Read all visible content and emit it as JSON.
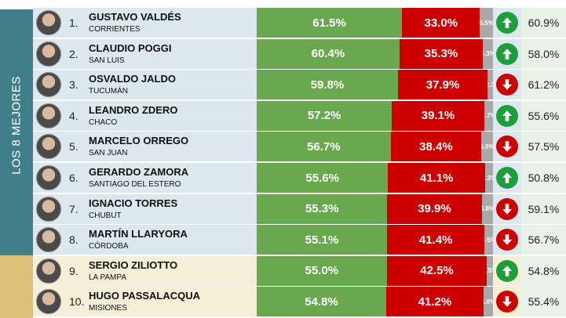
{
  "board": {
    "side_label": "LOS 8 MEJORES",
    "colors": {
      "teal": "#3f7f8a",
      "gold": "#dcc07a",
      "positive": "#6aa84f",
      "negative": "#cc0000",
      "other": "#a9a9a9",
      "up": "#1e9e3a",
      "down": "#cc0000"
    }
  },
  "chart_data": {
    "type": "bar",
    "stacked": true,
    "orientation": "horizontal",
    "xlim": [
      0,
      100
    ],
    "categories": [
      "GUSTAVO VALDÉS",
      "CLAUDIO POGGI",
      "OSVALDO JALDO",
      "LEANDRO ZDERO",
      "MARCELO ORREGO",
      "GERARDO ZAMORA",
      "IGNACIO TORRES",
      "MARTÍN LLARYORA",
      "SERGIO ZILIOTTO",
      "HUGO PASSALACQUA"
    ],
    "series": [
      {
        "values": [
          61.5,
          60.4,
          59.8,
          57.2,
          56.7,
          55.6,
          55.3,
          55.1,
          55.0,
          54.8
        ],
        "color": "#6aa84f"
      },
      {
        "values": [
          33.0,
          35.3,
          37.9,
          39.1,
          38.4,
          41.1,
          39.9,
          41.4,
          42.5,
          41.2
        ],
        "color": "#cc0000"
      },
      {
        "values": [
          5.5,
          4.3,
          2.3,
          3.7,
          4.9,
          3.3,
          4.8,
          3.5,
          2.5,
          4.0
        ],
        "color": "#a9a9a9"
      }
    ],
    "rows": [
      {
        "rank": "1.",
        "name": "GUSTAVO VALDÉS",
        "province": "CORRIENTES",
        "pos": 61.5,
        "pos_label": "61.5%",
        "neg": 33.0,
        "neg_label": "33.0%",
        "other": 5.5,
        "other_label": "5.5%",
        "trend": "up",
        "prev_label": "60.9%"
      },
      {
        "rank": "2.",
        "name": "CLAUDIO POGGI",
        "province": "SAN LUIS",
        "pos": 60.4,
        "pos_label": "60.4%",
        "neg": 35.3,
        "neg_label": "35.3%",
        "other": 4.3,
        "other_label": "4.3%",
        "trend": "up",
        "prev_label": "58.0%"
      },
      {
        "rank": "3.",
        "name": "OSVALDO JALDO",
        "province": "TUCUMÁN",
        "pos": 59.8,
        "pos_label": "59.8%",
        "neg": 37.9,
        "neg_label": "37.9%",
        "other": 2.3,
        "other_label": "2.3",
        "trend": "down",
        "prev_label": "61.2%"
      },
      {
        "rank": "4.",
        "name": "LEANDRO ZDERO",
        "province": "CHACO",
        "pos": 57.2,
        "pos_label": "57.2%",
        "neg": 39.1,
        "neg_label": "39.1%",
        "other": 3.7,
        "other_label": "3.7%",
        "trend": "up",
        "prev_label": "55.6%"
      },
      {
        "rank": "5.",
        "name": "MARCELO ORREGO",
        "province": "SAN JUAN",
        "pos": 56.7,
        "pos_label": "56.7%",
        "neg": 38.4,
        "neg_label": "38.4%",
        "other": 4.9,
        "other_label": "4.9%",
        "trend": "down",
        "prev_label": "57.5%"
      },
      {
        "rank": "6.",
        "name": "GERARDO ZAMORA",
        "province": "SANTIAGO DEL ESTERO",
        "pos": 55.6,
        "pos_label": "55.6%",
        "neg": 41.1,
        "neg_label": "41.1%",
        "other": 3.3,
        "other_label": "3.3%",
        "trend": "up",
        "prev_label": "50.8%"
      },
      {
        "rank": "7.",
        "name": "IGNACIO TORRES",
        "province": "CHUBUT",
        "pos": 55.3,
        "pos_label": "55.3%",
        "neg": 39.9,
        "neg_label": "39.9%",
        "other": 4.8,
        "other_label": "4.8%",
        "trend": "down",
        "prev_label": "59.1%"
      },
      {
        "rank": "8.",
        "name": "MARTÍN LLARYORA",
        "province": "CÓRDOBA",
        "pos": 55.1,
        "pos_label": "55.1%",
        "neg": 41.4,
        "neg_label": "41.4%",
        "other": 3.5,
        "other_label": "3.5%",
        "trend": "down",
        "prev_label": "56.7%"
      },
      {
        "rank": "9.",
        "name": "SERGIO ZILIOTTO",
        "province": "LA PAMPA",
        "pos": 55.0,
        "pos_label": "55.0%",
        "neg": 42.5,
        "neg_label": "42.5%",
        "other": 2.5,
        "other_label": "2.5%",
        "trend": "up",
        "prev_label": "54.8%"
      },
      {
        "rank": "10.",
        "name": "HUGO PASSALACQUA",
        "province": "MISIONES",
        "pos": 54.8,
        "pos_label": "54.8%",
        "neg": 41.2,
        "neg_label": "41.2%",
        "other": 4.0,
        "other_label": "4.0%",
        "trend": "down",
        "prev_label": "55.4%"
      }
    ]
  }
}
